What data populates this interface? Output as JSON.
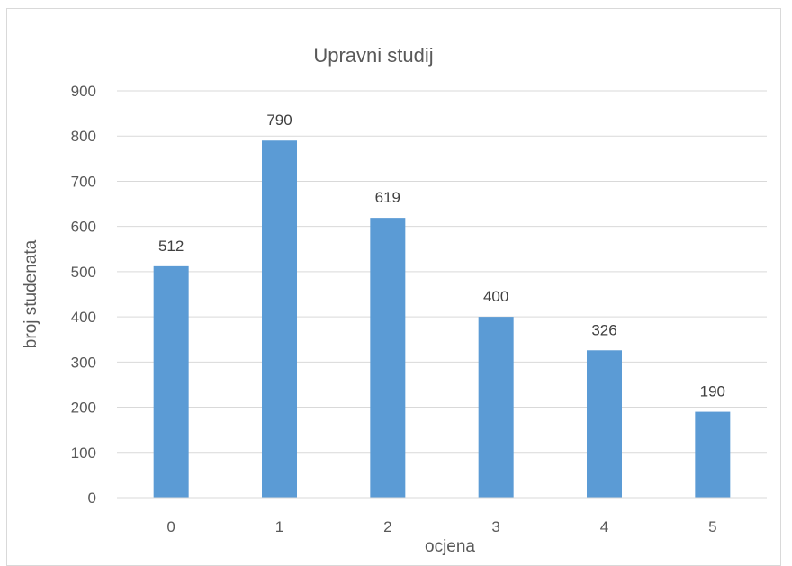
{
  "chart_data": {
    "type": "bar",
    "title": "Upravni studij",
    "xlabel": "ocjena",
    "ylabel": "broj studenata",
    "categories": [
      "0",
      "1",
      "2",
      "3",
      "4",
      "5"
    ],
    "values": [
      512,
      790,
      619,
      400,
      326,
      190
    ],
    "ylim": [
      0,
      900
    ],
    "yticks": [
      0,
      100,
      200,
      300,
      400,
      500,
      600,
      700,
      800,
      900
    ],
    "grid": true,
    "legend": "none",
    "bar_color": "#5b9bd5",
    "grid_color": "#d9d9d9"
  }
}
